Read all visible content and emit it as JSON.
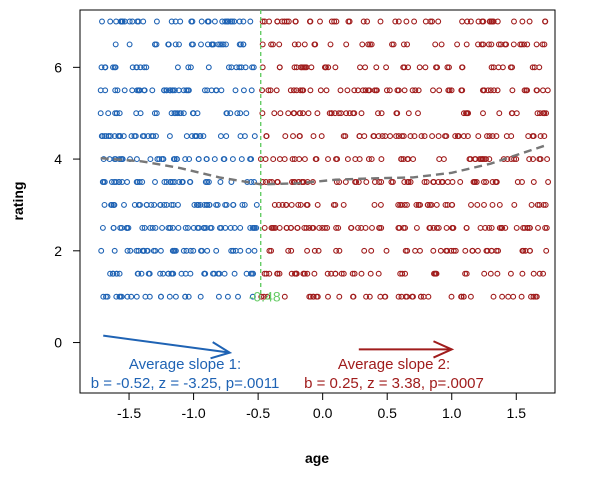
{
  "chart_data": {
    "type": "scatter",
    "title": "",
    "xlabel": "age",
    "ylabel": "rating",
    "xlim": [
      -1.88,
      1.8
    ],
    "ylim": [
      -1.1,
      7.25
    ],
    "x_ticks": [
      -1.5,
      -1.0,
      -0.5,
      0.0,
      0.5,
      1.0,
      1.5
    ],
    "x_tick_labels": [
      "-1.5",
      "-1.0",
      "-0.5",
      "0.0",
      "0.5",
      "1.0",
      "1.5"
    ],
    "y_ticks": [
      0,
      2,
      4,
      6
    ],
    "y_tick_labels": [
      "0",
      "2",
      "4",
      "6"
    ],
    "grid": false,
    "legend": "none",
    "breakpoint": {
      "x": -0.48,
      "label": "-0.48",
      "color": "#66cc66"
    },
    "series": [
      {
        "x_range": [
          -1.72,
          -0.5
        ],
        "y_values": [
          1,
          1.5,
          2,
          2.5,
          3,
          3.5,
          4,
          4.5,
          5,
          5.5,
          6,
          6.5,
          7
        ],
        "color": "#1f63b4",
        "marker": "open-circle"
      },
      {
        "x_range": [
          -0.48,
          1.75
        ],
        "y_values": [
          1,
          1.5,
          2,
          2.5,
          3,
          3.5,
          4,
          4.5,
          5,
          5.5,
          6,
          6.5,
          7
        ],
        "color": "#a01c1c",
        "marker": "open-circle"
      }
    ],
    "trend": {
      "style": "dashed",
      "color": "#777777",
      "x": [
        -1.72,
        -1.4,
        -1.1,
        -0.8,
        -0.48,
        -0.2,
        0.1,
        0.4,
        0.7,
        1.0,
        1.3,
        1.75
      ],
      "y": [
        4.02,
        3.95,
        3.8,
        3.6,
        3.45,
        3.47,
        3.55,
        3.58,
        3.6,
        3.7,
        3.9,
        4.32
      ]
    },
    "annotations": [
      {
        "line1": "Average slope 1:",
        "line2": "b = -0.52, z = -3.25, p=.0011",
        "color": "#1f63b4",
        "arrow_from": [
          -1.7,
          0.15
        ],
        "arrow_to": [
          -0.72,
          -0.22
        ]
      },
      {
        "line1": "Average slope 2:",
        "line2": "b = 0.25, z = 3.38, p=.0007",
        "color": "#a01c1c",
        "arrow_from": [
          0.28,
          -0.15
        ],
        "arrow_to": [
          1.0,
          -0.15
        ]
      }
    ]
  }
}
